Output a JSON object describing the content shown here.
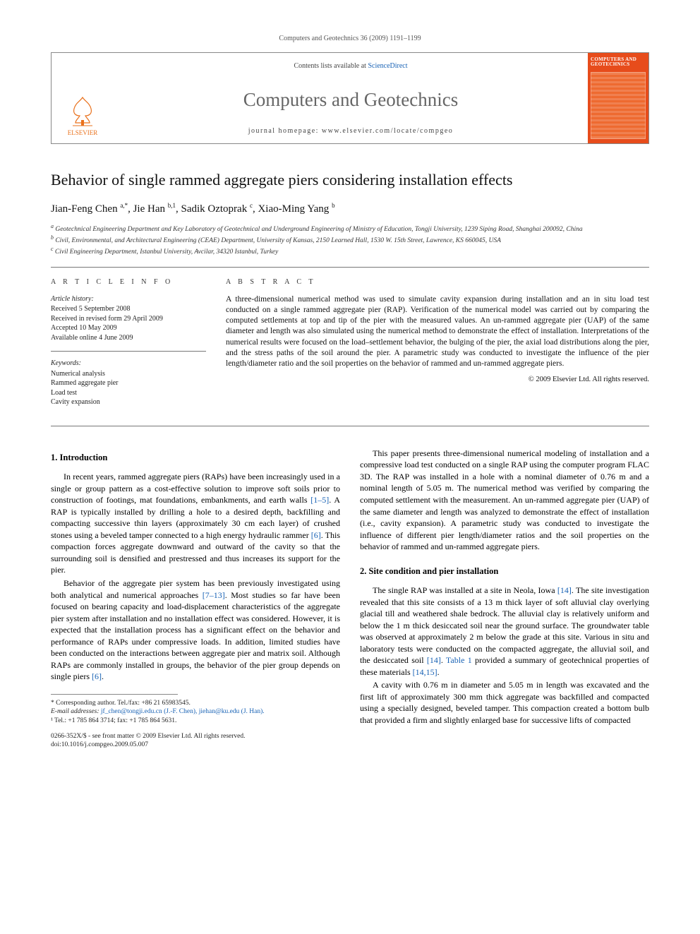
{
  "header": {
    "running_head": "Computers and Geotechnics 36 (2009) 1191–1199"
  },
  "masthead": {
    "publisher": "ELSEVIER",
    "contents_prefix": "Contents lists available at",
    "contents_link": "ScienceDirect",
    "journal_name": "Computers and Geotechnics",
    "homepage_label": "journal homepage: www.elsevier.com/locate/compgeo",
    "cover_title": "COMPUTERS AND GEOTECHNICS"
  },
  "article": {
    "title": "Behavior of single rammed aggregate piers considering installation effects",
    "authors_html": "Jian-Feng Chen <sup>a,*</sup>, Jie Han <sup>b,1</sup>, Sadik Oztoprak <sup>c</sup>, Xiao-Ming Yang <sup>b</sup>",
    "affiliations": {
      "a": "Geotechnical Engineering Department and Key Laboratory of Geotechnical and Underground Engineering of Ministry of Education, Tongji University, 1239 Siping Road, Shanghai 200092, China",
      "b": "Civil, Environmental, and Architectural Engineering (CEAE) Department, University of Kansas, 2150 Learned Hall, 1530 W. 15th Street, Lawrence, KS 660045, USA",
      "c": "Civil Engineering Department, Istanbul University, Avcilar, 34320 Istanbul, Turkey"
    }
  },
  "info": {
    "heading": "A R T I C L E   I N F O",
    "history_label": "Article history:",
    "history": {
      "received": "Received 5 September 2008",
      "revised": "Received in revised form 29 April 2009",
      "accepted": "Accepted 10 May 2009",
      "online": "Available online 4 June 2009"
    },
    "keywords_label": "Keywords:",
    "keywords": [
      "Numerical analysis",
      "Rammed aggregate pier",
      "Load test",
      "Cavity expansion"
    ]
  },
  "abstract": {
    "heading": "A B S T R A C T",
    "text": "A three-dimensional numerical method was used to simulate cavity expansion during installation and an in situ load test conducted on a single rammed aggregate pier (RAP). Verification of the numerical model was carried out by comparing the computed settlements at top and tip of the pier with the measured values. An un-rammed aggregate pier (UAP) of the same diameter and length was also simulated using the numerical method to demonstrate the effect of installation. Interpretations of the numerical results were focused on the load–settlement behavior, the bulging of the pier, the axial load distributions along the pier, and the stress paths of the soil around the pier. A parametric study was conducted to investigate the influence of the pier length/diameter ratio and the soil properties on the behavior of rammed and un-rammed aggregate piers.",
    "copyright": "© 2009 Elsevier Ltd. All rights reserved."
  },
  "body": {
    "s1_heading": "1. Introduction",
    "p1": "In recent years, rammed aggregate piers (RAPs) have been increasingly used in a single or group pattern as a cost-effective solution to improve soft soils prior to construction of footings, mat foundations, embankments, and earth walls [1–5]. A RAP is typically installed by drilling a hole to a desired depth, backfilling and compacting successive thin layers (approximately 30 cm each layer) of crushed stones using a beveled tamper connected to a high energy hydraulic rammer [6]. This compaction forces aggregate downward and outward of the cavity so that the surrounding soil is densified and prestressed and thus increases its support for the pier.",
    "p2": "Behavior of the aggregate pier system has been previously investigated using both analytical and numerical approaches [7–13]. Most studies so far have been focused on bearing capacity and load-displacement characteristics of the aggregate pier system after installation and no installation effect was considered. However, it is expected that the installation process has a significant effect on the behavior and performance of RAPs under compressive loads. In addition, limited studies have been conducted on the interactions between aggregate pier and matrix soil. Although RAPs are commonly installed in groups, the behavior of the pier group depends on single piers [6].",
    "p3": "This paper presents three-dimensional numerical modeling of installation and a compressive load test conducted on a single RAP using the computer program FLAC 3D. The RAP was installed in a hole with a nominal diameter of 0.76 m and a nominal length of 5.05 m. The numerical method was verified by comparing the computed settlement with the measurement. An un-rammed aggregate pier (UAP) of the same diameter and length was analyzed to demonstrate the effect of installation (i.e., cavity expansion). A parametric study was conducted to investigate the influence of different pier length/diameter ratios and the soil properties on the behavior of rammed and un-rammed aggregate piers.",
    "s2_heading": "2. Site condition and pier installation",
    "p4": "The single RAP was installed at a site in Neola, Iowa [14]. The site investigation revealed that this site consists of a 13 m thick layer of soft alluvial clay overlying glacial till and weathered shale bedrock. The alluvial clay is relatively uniform and below the 1 m thick desiccated soil near the ground surface. The groundwater table was observed at approximately 2 m below the grade at this site. Various in situ and laboratory tests were conducted on the compacted aggregate, the alluvial soil, and the desiccated soil [14]. Table 1 provided a summary of geotechnical properties of these materials [14,15].",
    "p5": "A cavity with 0.76 m in diameter and 5.05 m in length was excavated and the first lift of approximately 300 mm thick aggregate was backfilled and compacted using a specially designed, beveled tamper. This compaction created a bottom bulb that provided a firm and slightly enlarged base for successive lifts of compacted"
  },
  "footnotes": {
    "corr": "* Corresponding author. Tel./fax: +86 21 65983545.",
    "label": "E-mail addresses:",
    "emails": "jf_chen@tongji.edu.cn (J.-F. Chen), jiehan@ku.edu (J. Han).",
    "tel1": "¹ Tel.: +1 785 864 3714; fax: +1 785 864 5631."
  },
  "doi": {
    "line1": "0266-352X/$ - see front matter © 2009 Elsevier Ltd. All rights reserved.",
    "line2": "doi:10.1016/j.compgeo.2009.05.007"
  },
  "colors": {
    "accent_orange": "#e9711c",
    "link_blue": "#1862b5",
    "cover_bg": "#e74c1b",
    "text": "#000000",
    "rule": "#777777"
  },
  "typography": {
    "body_pt": 12,
    "title_pt": 22,
    "authors_pt": 15,
    "affil_pt": 9.5,
    "abstract_pt": 11.5,
    "info_pt": 10
  }
}
